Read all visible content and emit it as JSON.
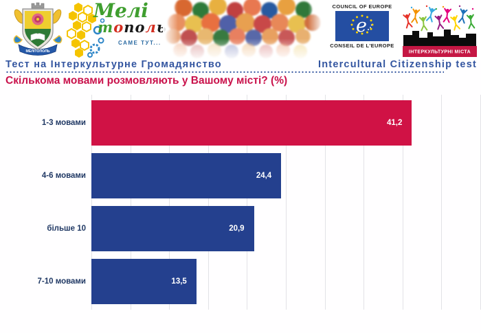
{
  "header": {
    "coat_of_arms": {
      "ribbon": "МЕЛІТОПОЛЬ"
    },
    "melitopol_logo": {
      "line1": "Мелі",
      "line2_letters": [
        {
          "ch": "т",
          "color": "#3f9e2f"
        },
        {
          "ch": "о",
          "color": "#d42e20"
        },
        {
          "ch": "п",
          "color": "#1a1a1a"
        },
        {
          "ch": "о",
          "color": "#1a1a1a"
        },
        {
          "ch": "л",
          "color": "#d42e20"
        },
        {
          "ch": "ь",
          "color": "#1a1a1a"
        }
      ],
      "tagline": "САМЕ ТУТ..."
    },
    "council_of_europe": {
      "top": "COUNCIL OF EUROPE",
      "bottom": "CONSEIL DE L'EUROPE",
      "e": "e"
    },
    "intercultural_cities": {
      "banner": "ІНТЕРКУЛЬТУРНІ МІСТА"
    }
  },
  "titlebar": {
    "left": "Тест на Інтеркультурне Громадянство",
    "right": "Intercultural Citizenship test"
  },
  "question": "Скількома мовами розмовляють у Вашому місті? (%)",
  "chart_data": {
    "type": "bar",
    "orientation": "horizontal",
    "title": "Скількома мовами розмовляють у Вашому місті? (%)",
    "categories": [
      "1-3 мовами",
      "4-6 мовами",
      "більше 10",
      "7-10 мовами"
    ],
    "values": [
      41.2,
      24.4,
      20.9,
      13.5
    ],
    "value_labels": [
      "41,2",
      "24,4",
      "20,9",
      "13,5"
    ],
    "bar_colors": [
      "#d01245",
      "#24408e",
      "#24408e",
      "#24408e"
    ],
    "xlim": [
      0,
      50
    ],
    "gridline_step": 5,
    "grid": true,
    "legend": false,
    "xlabel": "",
    "ylabel": ""
  },
  "colors": {
    "accent_red": "#d01245",
    "accent_blue": "#24408e",
    "title_blue": "#3355a0",
    "question_red": "#c9114b",
    "category_label_navy": "#203864",
    "gridline": "#e2e2e6",
    "coe_blue": "#244ea2",
    "icc_banner_red": "#c51744"
  }
}
